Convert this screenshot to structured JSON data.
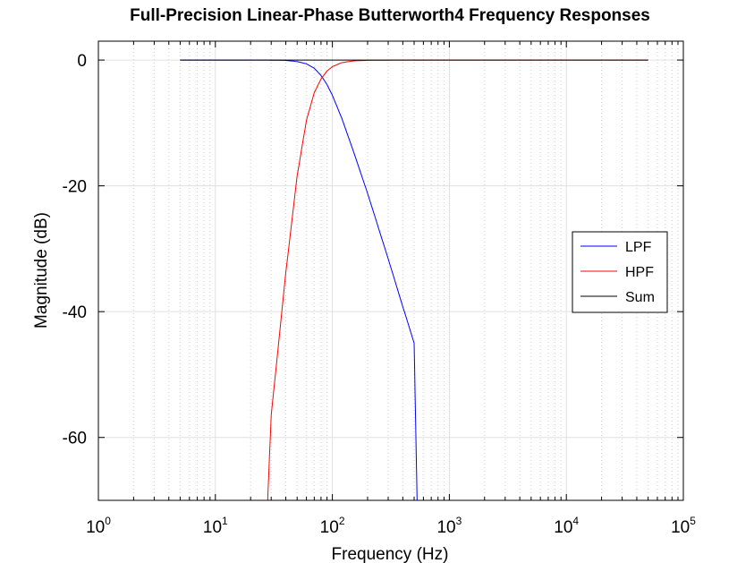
{
  "chart_data": {
    "type": "line",
    "title": "Full-Precision Linear-Phase Butterworth4 Frequency Responses",
    "xlabel": "Frequency (Hz)",
    "ylabel": "Magnitude (dB)",
    "xscale": "log",
    "xlim": [
      1,
      100000
    ],
    "ylim": [
      -70,
      3
    ],
    "x_ticks": [
      {
        "base": "10",
        "exp": "0"
      },
      {
        "base": "10",
        "exp": "1"
      },
      {
        "base": "10",
        "exp": "2"
      },
      {
        "base": "10",
        "exp": "3"
      },
      {
        "base": "10",
        "exp": "4"
      },
      {
        "base": "10",
        "exp": "5"
      }
    ],
    "y_ticks": [
      "0",
      "-20",
      "-40",
      "-60"
    ],
    "y_tick_values": [
      0,
      -20,
      -40,
      -60
    ],
    "grid": true,
    "legend_position": "right",
    "series": [
      {
        "name": "LPF",
        "color": "#0000ff",
        "x": [
          5,
          20,
          30,
          40,
          50,
          60,
          70,
          80,
          90,
          100,
          120,
          150,
          200,
          300,
          400,
          500,
          530
        ],
        "y": [
          0,
          0,
          -0.01,
          -0.06,
          -0.24,
          -0.6,
          -1.3,
          -2.45,
          -3.9,
          -5.6,
          -9.2,
          -14.3,
          -21.2,
          -31.6,
          -39.2,
          -45.0,
          -70
        ]
      },
      {
        "name": "HPF",
        "color": "#ff0000",
        "x": [
          28,
          30,
          40,
          50,
          60,
          70,
          80,
          90,
          100,
          120,
          150,
          200,
          300,
          500,
          1000,
          10000,
          50000
        ],
        "y": [
          -70,
          -56.5,
          -33.8,
          -18.4,
          -9.6,
          -5.2,
          -3.0,
          -1.75,
          -1.05,
          -0.42,
          -0.14,
          -0.04,
          -0.01,
          0,
          0,
          0,
          0
        ]
      },
      {
        "name": "Sum",
        "color": "#000000",
        "x": [
          5,
          50000
        ],
        "y": [
          0,
          0
        ]
      }
    ]
  }
}
